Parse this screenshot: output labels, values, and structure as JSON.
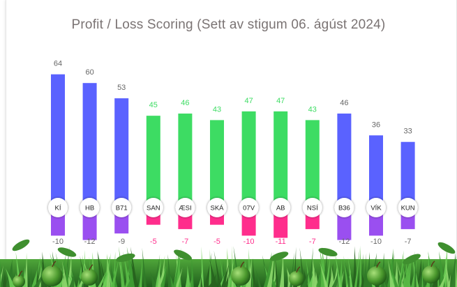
{
  "title": "Profit / Loss Scoring (Sett av stigum 06. ágúst 2024)",
  "colors": {
    "profit_above": "#5a62ff",
    "profit_green": "#3ddc63",
    "loss_purple": "#9a4ff0",
    "loss_pink": "#ff2d8c",
    "label_grey": "#666666",
    "label_green": "#3ddc63",
    "label_pink": "#ff2d8c"
  },
  "chart_data": {
    "type": "bar",
    "title": "Profit / Loss Scoring (Sett av stigum 06. ágúst 2024)",
    "categories": [
      "KÍ",
      "HB",
      "B71",
      "SAN",
      "ÆSI",
      "SKÁ",
      "07V",
      "AB",
      "NSÍ",
      "B36",
      "VÍK",
      "KUN"
    ],
    "series": [
      {
        "name": "",
        "values": [
          64,
          60,
          53,
          45,
          46,
          43,
          47,
          47,
          43,
          46,
          36,
          33
        ]
      },
      {
        "name": "",
        "values": [
          -10,
          -12,
          -9,
          -5,
          -7,
          -5,
          -10,
          -11,
          -7,
          -12,
          -10,
          -7
        ]
      }
    ],
    "profit_labels": [
      "64",
      "60",
      "53",
      "45",
      "46",
      "43",
      "47",
      "47",
      "43",
      "46",
      "36",
      "33"
    ],
    "loss_labels": [
      "-10",
      "-12",
      "-9",
      "-5",
      "-7",
      "-5",
      "-10",
      "-11",
      "-7",
      "-12",
      "-10",
      "-7"
    ],
    "profit_colors": [
      "blue",
      "blue",
      "blue",
      "green",
      "green",
      "green",
      "green",
      "green",
      "green",
      "blue",
      "blue",
      "blue"
    ],
    "loss_colors": [
      "purple",
      "purple",
      "purple",
      "pink",
      "pink",
      "pink",
      "pink",
      "pink",
      "pink",
      "purple",
      "purple",
      "purple"
    ],
    "ylim": [
      -12,
      64
    ],
    "grid": false,
    "legend": "none"
  }
}
